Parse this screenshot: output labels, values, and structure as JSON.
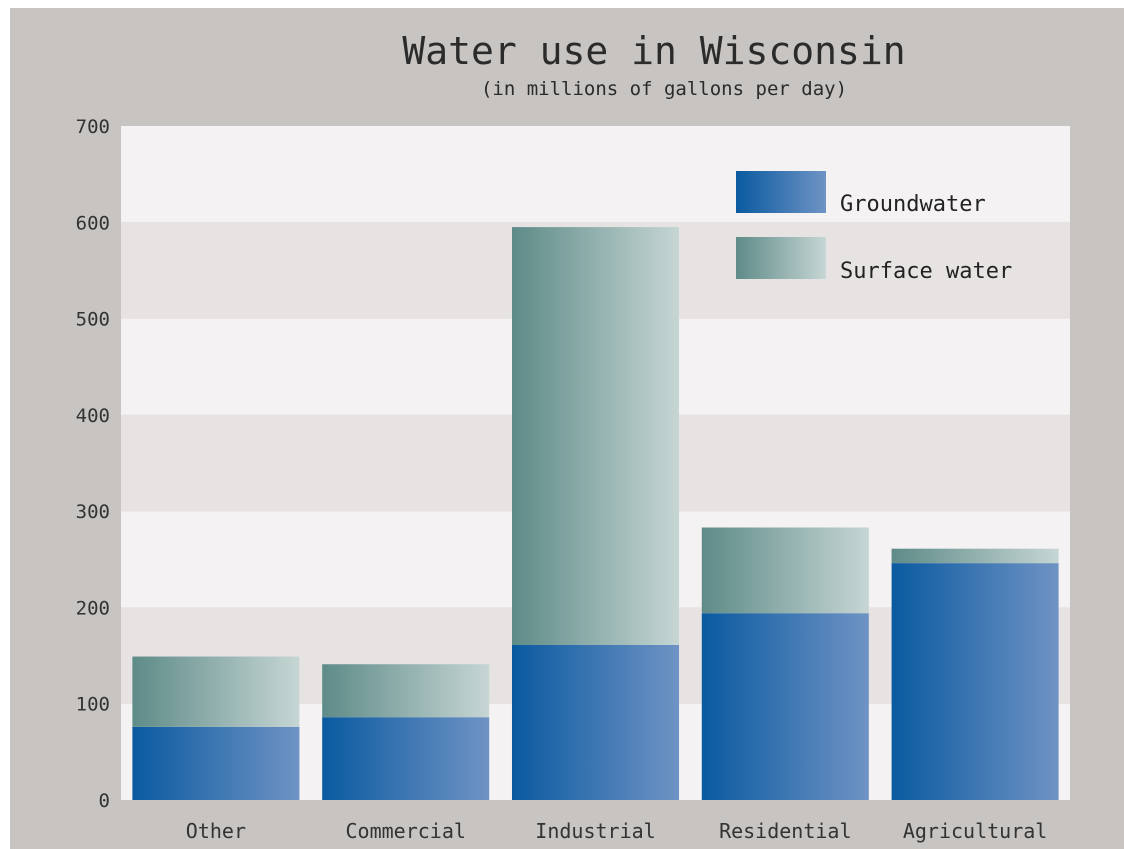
{
  "chart_data": {
    "type": "bar",
    "stacked": true,
    "title": "Water use in Wisconsin",
    "subtitle": "(in millions of gallons per day)",
    "xlabel": "",
    "ylabel": "",
    "categories": [
      "Other",
      "Commercial",
      "Industrial",
      "Residential",
      "Agricultural"
    ],
    "series": [
      {
        "name": "Groundwater",
        "values": [
          76,
          86,
          161,
          194,
          246
        ]
      },
      {
        "name": "Surface water",
        "values": [
          73,
          55,
          434,
          89,
          15
        ]
      }
    ],
    "ylim": [
      0,
      700
    ],
    "yticks": [
      0,
      100,
      200,
      300,
      400,
      500,
      600,
      700
    ],
    "grid": "alternating horizontal bands",
    "legend": "top-right",
    "colors": {
      "groundwater_dark": "#0a5aa0",
      "groundwater_light": "#6f93c4",
      "surface_dark": "#5e8b88",
      "surface_light": "#c6d6d4",
      "band_light": "#f4f2f2",
      "band_dark": "#e7e3e2",
      "background": "#c7c4c1"
    }
  }
}
